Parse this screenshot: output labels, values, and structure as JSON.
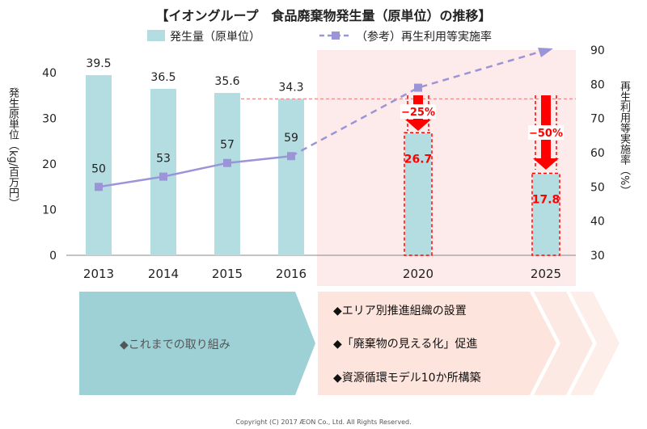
{
  "chart_data": {
    "type": "bar+line",
    "title": "【イオングループ　食品廃棄物発生量（原単位）の推移】",
    "categories": [
      "2013",
      "2014",
      "2015",
      "2016",
      "2020",
      "2025"
    ],
    "series": [
      {
        "name": "発生量（原単位）",
        "type": "bar",
        "axis": "left",
        "values": [
          39.5,
          36.5,
          35.6,
          34.3,
          26.7,
          17.8
        ],
        "labels": [
          "39.5",
          "36.5",
          "35.6",
          "34.3",
          "26.7",
          "17.8"
        ]
      },
      {
        "name": "（参考）再生利用等実施率",
        "type": "line",
        "axis": "right",
        "values": [
          50,
          53,
          57,
          59,
          79,
          90
        ],
        "labels": [
          "50",
          "53",
          "57",
          "59",
          "",
          ""
        ]
      }
    ],
    "ylabel": "発生原単位（kg/百万円）",
    "ylabel_right": "再生利用等実施率（%）",
    "ylim": [
      0,
      45
    ],
    "yticks": [
      "0",
      "10",
      "20",
      "30",
      "40"
    ],
    "ylim_right": [
      30,
      90
    ],
    "yticks_right": [
      "30",
      "40",
      "50",
      "60",
      "70",
      "80",
      "90"
    ],
    "annotations": [
      "−25%",
      "−50%"
    ],
    "legend_position": "top",
    "colors": {
      "bar": "#b3dde0",
      "line": "#9b95d8",
      "target": "#ff0000",
      "target_bg": "#fdeaea"
    }
  },
  "initiatives": {
    "past_label": "◆これまでの取り組み",
    "items": [
      "◆エリア別推進組織の設置",
      "◆「廃棄物の見える化」促進",
      "◆資源循環モデル10か所構築"
    ]
  },
  "copyright": "Copyright (C) 2017 ÆON Co., Ltd.  All Rights Reserved."
}
